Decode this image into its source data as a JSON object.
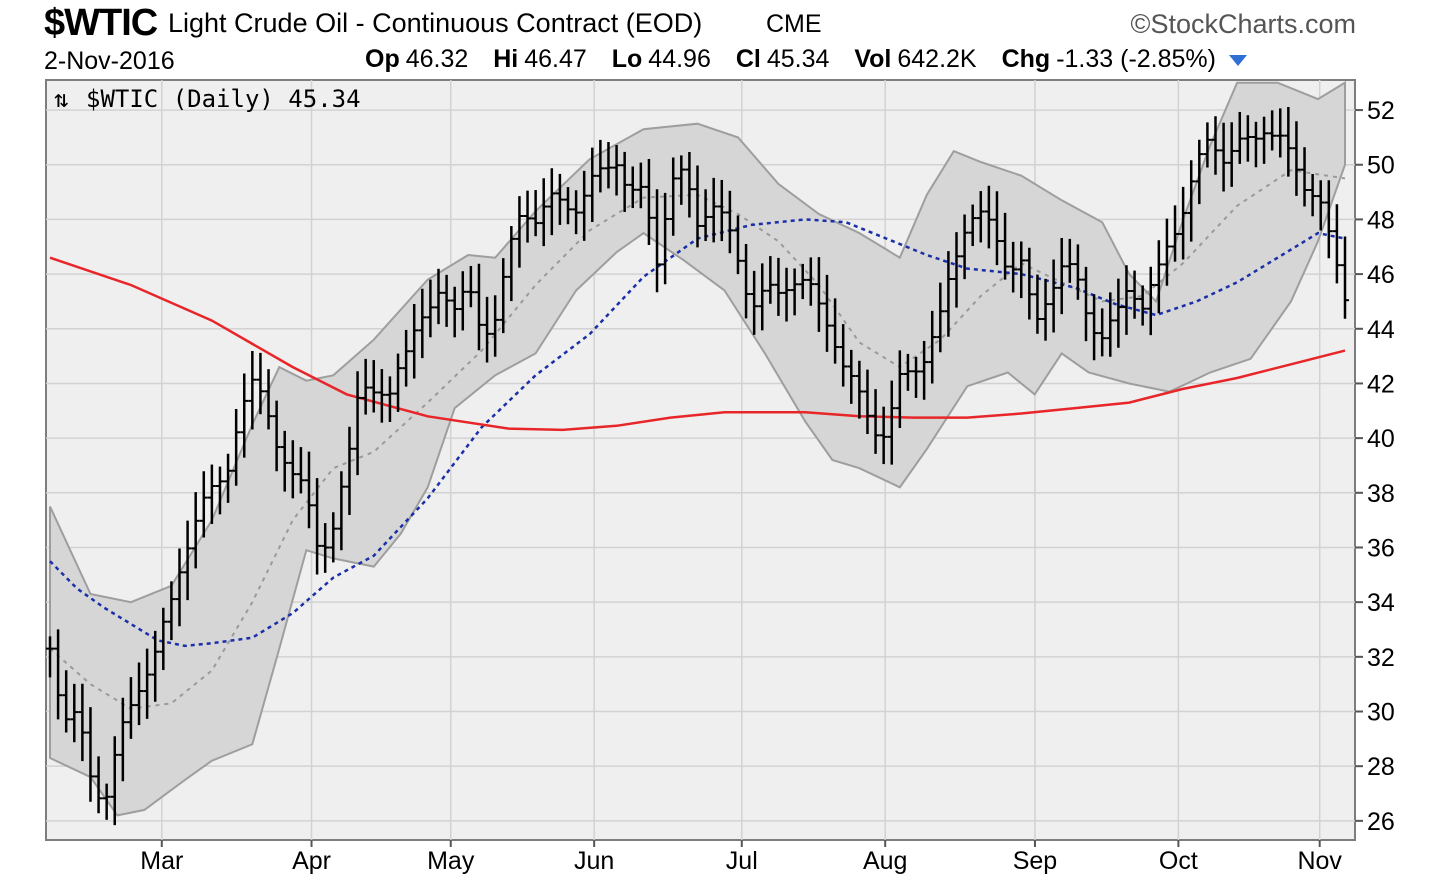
{
  "header": {
    "symbol": "$WTIC",
    "title": "Light Crude Oil - Continuous Contract (EOD)",
    "exchange": "CME",
    "brand": "©StockCharts.com",
    "date": "2-Nov-2016",
    "quote": {
      "op_label": "Op",
      "op": "46.32",
      "hi_label": "Hi",
      "hi": "46.47",
      "lo_label": "Lo",
      "lo": "44.96",
      "cl_label": "Cl",
      "cl": "45.34",
      "vol_label": "Vol",
      "vol": "642.2K",
      "chg_label": "Chg",
      "chg": "-1.33 (-2.85%)"
    }
  },
  "chart_data": {
    "type": "line",
    "legend": "$WTIC (Daily) 45.34",
    "x_tick_labels": [
      "Mar",
      "Apr",
      "May",
      "Jun",
      "Jul",
      "Aug",
      "Sep",
      "Oct",
      "Nov"
    ],
    "y_tick_labels": [
      "26",
      "28",
      "30",
      "32",
      "34",
      "36",
      "38",
      "40",
      "42",
      "44",
      "46",
      "48",
      "50",
      "52"
    ],
    "ylim": [
      25.3,
      53.1
    ],
    "grid": true,
    "colors": {
      "price_bars": "#000000",
      "ma_long": "#e8262a",
      "ma_mid": "#1a2fa8",
      "band_mid": "#9a9a9a",
      "band_fill": "#d6d6d6",
      "plot_bg": "#efefef"
    },
    "price_series": [
      [
        0,
        32.3
      ],
      [
        5,
        30.0
      ],
      [
        10,
        29.8
      ],
      [
        15,
        27.5
      ],
      [
        20,
        26.8
      ],
      [
        25,
        28.8
      ],
      [
        30,
        30.0
      ],
      [
        35,
        31.5
      ],
      [
        40,
        32.5
      ],
      [
        45,
        33.8
      ],
      [
        50,
        36.0
      ],
      [
        55,
        37.5
      ],
      [
        60,
        37.9
      ],
      [
        65,
        38.6
      ],
      [
        70,
        41.0
      ],
      [
        75,
        41.8
      ],
      [
        80,
        41.3
      ],
      [
        85,
        39.7
      ],
      [
        90,
        38.4
      ],
      [
        95,
        38.0
      ],
      [
        100,
        36.0
      ],
      [
        105,
        36.5
      ],
      [
        110,
        38.8
      ],
      [
        115,
        42.5
      ],
      [
        120,
        41.6
      ],
      [
        125,
        41.0
      ],
      [
        130,
        43.2
      ],
      [
        135,
        44.0
      ],
      [
        140,
        44.2
      ],
      [
        145,
        45.7
      ],
      [
        150,
        44.9
      ],
      [
        155,
        45.3
      ],
      [
        160,
        43.8
      ],
      [
        165,
        44.6
      ],
      [
        170,
        46.6
      ],
      [
        175,
        48.3
      ],
      [
        180,
        48.2
      ],
      [
        185,
        48.7
      ],
      [
        190,
        48.4
      ],
      [
        195,
        48.6
      ],
      [
        200,
        49.3
      ],
      [
        205,
        49.6
      ],
      [
        210,
        50.3
      ],
      [
        215,
        49.0
      ],
      [
        220,
        48.8
      ],
      [
        225,
        46.6
      ],
      [
        230,
        49.5
      ],
      [
        235,
        49.5
      ],
      [
        240,
        47.9
      ],
      [
        245,
        48.8
      ],
      [
        250,
        47.8
      ],
      [
        255,
        46.5
      ],
      [
        260,
        45.0
      ],
      [
        265,
        45.3
      ],
      [
        270,
        45.2
      ],
      [
        275,
        46.0
      ],
      [
        280,
        45.7
      ],
      [
        285,
        44.7
      ],
      [
        290,
        44.0
      ],
      [
        295,
        42.4
      ],
      [
        300,
        41.4
      ],
      [
        305,
        40.5
      ],
      [
        310,
        40.2
      ],
      [
        315,
        42.0
      ],
      [
        320,
        42.6
      ],
      [
        325,
        43.2
      ],
      [
        330,
        44.3
      ],
      [
        335,
        46.5
      ],
      [
        340,
        48.2
      ],
      [
        345,
        48.0
      ],
      [
        350,
        47.5
      ],
      [
        355,
        46.4
      ],
      [
        360,
        46.3
      ],
      [
        365,
        44.0
      ],
      [
        370,
        45.5
      ],
      [
        375,
        46.2
      ],
      [
        380,
        45.9
      ],
      [
        385,
        44.5
      ],
      [
        390,
        43.7
      ],
      [
        395,
        44.2
      ],
      [
        400,
        45.8
      ],
      [
        405,
        44.9
      ],
      [
        410,
        45.7
      ],
      [
        415,
        47.3
      ],
      [
        420,
        48.5
      ],
      [
        425,
        49.8
      ],
      [
        430,
        51.0
      ],
      [
        435,
        50.4
      ],
      [
        440,
        50.6
      ],
      [
        445,
        50.8
      ],
      [
        450,
        51.5
      ],
      [
        455,
        51.0
      ],
      [
        460,
        50.1
      ],
      [
        465,
        49.4
      ],
      [
        470,
        48.9
      ],
      [
        475,
        46.8
      ],
      [
        480,
        45.3
      ]
    ],
    "ma_long_series": [
      [
        0,
        46.6
      ],
      [
        30,
        45.6
      ],
      [
        60,
        44.3
      ],
      [
        90,
        42.6
      ],
      [
        110,
        41.6
      ],
      [
        140,
        40.8
      ],
      [
        170,
        40.35
      ],
      [
        190,
        40.3
      ],
      [
        210,
        40.45
      ],
      [
        230,
        40.75
      ],
      [
        250,
        40.95
      ],
      [
        280,
        40.95
      ],
      [
        300,
        40.8
      ],
      [
        320,
        40.75
      ],
      [
        340,
        40.75
      ],
      [
        360,
        40.9
      ],
      [
        380,
        41.1
      ],
      [
        400,
        41.3
      ],
      [
        420,
        41.8
      ],
      [
        440,
        42.2
      ],
      [
        460,
        42.7
      ],
      [
        480,
        43.2
      ]
    ],
    "ma_mid_series": [
      [
        0,
        35.5
      ],
      [
        10,
        34.5
      ],
      [
        20,
        33.8
      ],
      [
        30,
        33.2
      ],
      [
        40,
        32.6
      ],
      [
        50,
        32.4
      ],
      [
        60,
        32.5
      ],
      [
        75,
        32.7
      ],
      [
        90,
        33.6
      ],
      [
        105,
        34.9
      ],
      [
        120,
        35.7
      ],
      [
        140,
        37.8
      ],
      [
        160,
        40.4
      ],
      [
        180,
        42.3
      ],
      [
        200,
        43.8
      ],
      [
        220,
        45.9
      ],
      [
        240,
        47.3
      ],
      [
        260,
        47.8
      ],
      [
        280,
        48.0
      ],
      [
        295,
        47.9
      ],
      [
        310,
        47.3
      ],
      [
        325,
        46.7
      ],
      [
        340,
        46.2
      ],
      [
        360,
        46.0
      ],
      [
        380,
        45.5
      ],
      [
        395,
        44.9
      ],
      [
        410,
        44.5
      ],
      [
        425,
        45.0
      ],
      [
        440,
        45.7
      ],
      [
        455,
        46.6
      ],
      [
        470,
        47.5
      ],
      [
        480,
        47.3
      ]
    ],
    "band_mid_series": [
      [
        0,
        32.3
      ],
      [
        15,
        31.0
      ],
      [
        30,
        30.1
      ],
      [
        45,
        30.3
      ],
      [
        60,
        31.5
      ],
      [
        75,
        34.0
      ],
      [
        90,
        37.0
      ],
      [
        105,
        38.9
      ],
      [
        120,
        39.5
      ],
      [
        140,
        41.3
      ],
      [
        160,
        43.2
      ],
      [
        180,
        45.6
      ],
      [
        200,
        47.6
      ],
      [
        220,
        48.8
      ],
      [
        240,
        48.9
      ],
      [
        255,
        48.2
      ],
      [
        270,
        47.2
      ],
      [
        285,
        45.6
      ],
      [
        300,
        43.5
      ],
      [
        315,
        42.6
      ],
      [
        330,
        43.6
      ],
      [
        345,
        45.2
      ],
      [
        360,
        46.4
      ],
      [
        375,
        45.7
      ],
      [
        390,
        45.0
      ],
      [
        405,
        45.2
      ],
      [
        420,
        46.4
      ],
      [
        440,
        48.5
      ],
      [
        460,
        49.8
      ],
      [
        480,
        49.5
      ]
    ],
    "band_upper_series": [
      [
        0,
        37.5
      ],
      [
        15,
        34.3
      ],
      [
        30,
        34.0
      ],
      [
        45,
        34.6
      ],
      [
        60,
        37.0
      ],
      [
        75,
        40.5
      ],
      [
        85,
        42.6
      ],
      [
        95,
        42.1
      ],
      [
        105,
        42.3
      ],
      [
        120,
        43.6
      ],
      [
        140,
        45.8
      ],
      [
        155,
        46.7
      ],
      [
        165,
        46.6
      ],
      [
        180,
        48.3
      ],
      [
        200,
        50.2
      ],
      [
        220,
        51.3
      ],
      [
        240,
        51.5
      ],
      [
        255,
        51.0
      ],
      [
        270,
        49.3
      ],
      [
        285,
        48.2
      ],
      [
        300,
        47.5
      ],
      [
        315,
        46.6
      ],
      [
        325,
        48.9
      ],
      [
        335,
        50.5
      ],
      [
        345,
        50.1
      ],
      [
        360,
        49.6
      ],
      [
        375,
        48.7
      ],
      [
        390,
        47.9
      ],
      [
        400,
        46.0
      ],
      [
        410,
        45.0
      ],
      [
        420,
        48.0
      ],
      [
        430,
        50.7
      ],
      [
        440,
        53.0
      ],
      [
        455,
        53.0
      ],
      [
        470,
        52.4
      ],
      [
        480,
        53.0
      ]
    ],
    "band_lower_series": [
      [
        0,
        28.3
      ],
      [
        15,
        27.6
      ],
      [
        25,
        26.2
      ],
      [
        35,
        26.4
      ],
      [
        50,
        27.5
      ],
      [
        60,
        28.2
      ],
      [
        75,
        28.8
      ],
      [
        85,
        32.3
      ],
      [
        95,
        35.9
      ],
      [
        105,
        35.6
      ],
      [
        120,
        35.3
      ],
      [
        130,
        36.5
      ],
      [
        140,
        38.2
      ],
      [
        150,
        41.1
      ],
      [
        165,
        42.3
      ],
      [
        180,
        43.1
      ],
      [
        195,
        45.4
      ],
      [
        210,
        46.8
      ],
      [
        220,
        47.5
      ],
      [
        235,
        46.5
      ],
      [
        250,
        45.4
      ],
      [
        265,
        43.1
      ],
      [
        280,
        40.6
      ],
      [
        290,
        39.2
      ],
      [
        300,
        38.9
      ],
      [
        315,
        38.2
      ],
      [
        325,
        39.6
      ],
      [
        340,
        41.9
      ],
      [
        355,
        42.4
      ],
      [
        365,
        41.6
      ],
      [
        375,
        43.1
      ],
      [
        385,
        42.4
      ],
      [
        400,
        42.0
      ],
      [
        415,
        41.7
      ],
      [
        430,
        42.4
      ],
      [
        445,
        42.9
      ],
      [
        460,
        45.0
      ],
      [
        470,
        47.2
      ],
      [
        480,
        50.0
      ]
    ]
  }
}
